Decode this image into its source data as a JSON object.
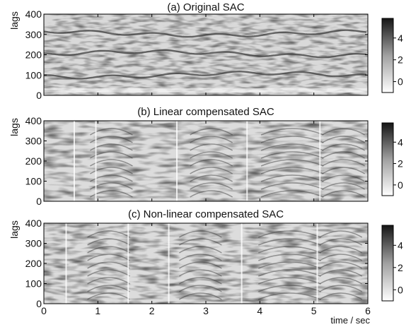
{
  "chart_data": [
    {
      "type": "heatmap",
      "title": "(a) Original SAC",
      "ylabel": "lags",
      "xlabel": "",
      "xlim": [
        0,
        6
      ],
      "ylim": [
        0,
        400
      ],
      "xticks": [
        0,
        1,
        2,
        3,
        4,
        5,
        6
      ],
      "yticks": [
        0,
        100,
        200,
        300,
        400
      ],
      "colorbar": {
        "ticks": [
          0,
          2,
          4
        ],
        "range": [
          -1,
          5.8
        ],
        "colormap": "gray-reversed"
      },
      "dominant_lag_bands": [
        100,
        205,
        305
      ]
    },
    {
      "type": "heatmap",
      "title": "(b) Linear compensated SAC",
      "ylabel": "lags",
      "xlabel": "",
      "xlim": [
        0,
        6
      ],
      "ylim": [
        0,
        400
      ],
      "xticks": [
        0,
        1,
        2,
        3,
        4,
        5,
        6
      ],
      "yticks": [
        0,
        100,
        200,
        300,
        400
      ],
      "colorbar": {
        "ticks": [
          0,
          2,
          4
        ],
        "range": [
          -1,
          5.8
        ],
        "colormap": "gray-reversed"
      }
    },
    {
      "type": "heatmap",
      "title": "(c) Non-linear compensated SAC",
      "ylabel": "lags",
      "xlabel": "time / sec",
      "xlim": [
        0,
        6
      ],
      "ylim": [
        0,
        400
      ],
      "xticks": [
        0,
        1,
        2,
        3,
        4,
        5,
        6
      ],
      "yticks": [
        0,
        100,
        200,
        300,
        400
      ],
      "colorbar": {
        "ticks": [
          0,
          2,
          4
        ],
        "range": [
          -1,
          5.8
        ],
        "colormap": "gray-reversed"
      }
    }
  ]
}
